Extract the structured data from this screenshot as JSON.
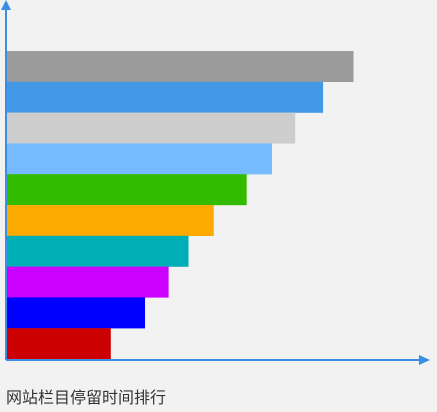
{
  "chart_data": {
    "type": "bar",
    "orientation": "horizontal",
    "title": "网站栏目停留时间排行",
    "xlabel": "",
    "ylabel": "",
    "axis_color": "#3a8ee6",
    "xlim": [
      0,
      100
    ],
    "grid": false,
    "legend": "none",
    "bars": [
      {
        "value": 82.1,
        "color": "#9b9b9b"
      },
      {
        "value": 74.9,
        "color": "#4499e6"
      },
      {
        "value": 68.3,
        "color": "#cdcdcd"
      },
      {
        "value": 62.8,
        "color": "#77bbff"
      },
      {
        "value": 56.8,
        "color": "#33bb00"
      },
      {
        "value": 49.0,
        "color": "#ffaa00"
      },
      {
        "value": 43.0,
        "color": "#00aeb5"
      },
      {
        "value": 38.3,
        "color": "#cc00ff"
      },
      {
        "value": 32.7,
        "color": "#0000ff"
      },
      {
        "value": 24.6,
        "color": "#cc0000"
      }
    ]
  }
}
